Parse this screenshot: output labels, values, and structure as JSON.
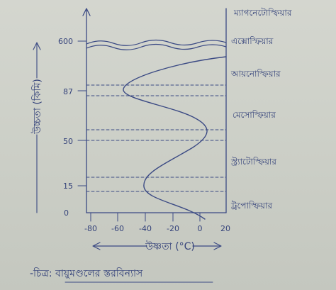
{
  "diagram": {
    "caption": "-চিত্র: বায়ুমণ্ডলের স্তরবিন্যাস",
    "y_axis": {
      "label": "উচ্চতা (কিমি)",
      "ticks": [
        "600",
        "87",
        "50",
        "15",
        "0"
      ]
    },
    "x_axis": {
      "label": "উষ্ণতা (°C)",
      "ticks": [
        "-80",
        "-60",
        "-40",
        "-20",
        "0",
        "20"
      ]
    },
    "layers": [
      "ম্যাগনেটোস্ফিয়ার",
      "এক্সোস্ফিয়ার",
      "আয়নোস্ফিয়ার",
      "মেসোস্ফিয়ার",
      "স্ট্র্যাটোস্ফিয়ার",
      "ট্রপোস্ফিয়ার"
    ]
  },
  "colors": {
    "ink": "#3b4a84",
    "paper": "#cdd0c8"
  }
}
